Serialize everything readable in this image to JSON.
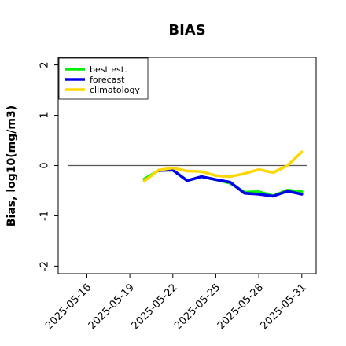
{
  "chart_data": {
    "type": "line",
    "title": "BIAS",
    "ylabel": "Bias, log10(mg/m3)",
    "xlabel": "",
    "x_ticks": [
      "2025-05-16",
      "2025-05-19",
      "2025-05-22",
      "2025-05-25",
      "2025-05-28",
      "2025-05-31"
    ],
    "x_tick_colors": [
      "#000000",
      "#000000",
      "#2ca02c",
      "#000000",
      "#000000",
      "#000000"
    ],
    "xlim": [
      "2025-05-14",
      "2025-06-01"
    ],
    "y_ticks": [
      2,
      1,
      0,
      -1,
      -2
    ],
    "ylim": [
      -2.15,
      2.15
    ],
    "zero_line": 0,
    "grid": false,
    "legend_position": "top-left",
    "x": [
      "2025-05-20",
      "2025-05-21",
      "2025-05-22",
      "2025-05-23",
      "2025-05-24",
      "2025-05-25",
      "2025-05-26",
      "2025-05-27",
      "2025-05-28",
      "2025-05-29",
      "2025-05-30",
      "2025-05-31"
    ],
    "series": [
      {
        "name": "best est.",
        "color": "#00ee00",
        "values": [
          -0.27,
          -0.1,
          -0.09,
          -0.3,
          -0.22,
          -0.28,
          -0.35,
          -0.53,
          -0.52,
          -0.6,
          -0.49,
          -0.52
        ]
      },
      {
        "name": "forecast",
        "color": "#0000ee",
        "values": [
          null,
          -0.1,
          -0.09,
          -0.3,
          -0.22,
          -0.28,
          -0.33,
          -0.55,
          -0.57,
          -0.61,
          -0.51,
          -0.57
        ]
      },
      {
        "name": "climatology",
        "color": "#ffd700",
        "values": [
          -0.31,
          -0.09,
          -0.05,
          -0.11,
          -0.12,
          -0.2,
          -0.22,
          -0.16,
          -0.08,
          -0.14,
          0.0,
          0.27
        ]
      }
    ]
  }
}
